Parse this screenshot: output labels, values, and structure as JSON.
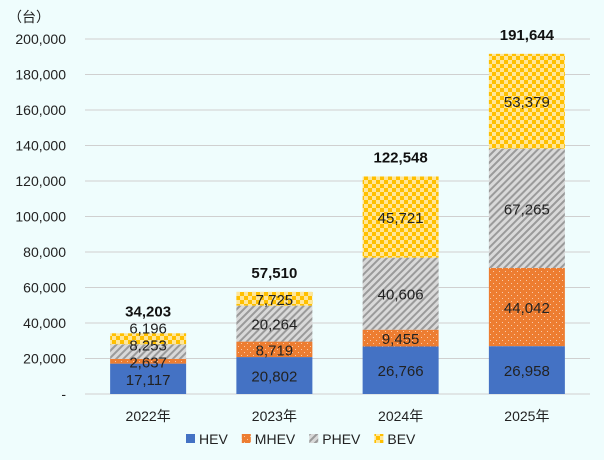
{
  "chart_data": {
    "type": "bar",
    "stacked": true,
    "unit_label": "（台）",
    "categories": [
      "2022年",
      "2023年",
      "2024年",
      "2025年"
    ],
    "series": [
      {
        "name": "HEV",
        "values": [
          17117,
          20802,
          26766,
          26958
        ],
        "color": "#4472c4"
      },
      {
        "name": "MHEV",
        "values": [
          2637,
          8719,
          9455,
          44042
        ],
        "color": "#ed7d31"
      },
      {
        "name": "PHEV",
        "values": [
          8253,
          20264,
          40606,
          67265
        ],
        "color": "#a5a5a5"
      },
      {
        "name": "BEV",
        "values": [
          6196,
          7725,
          45721,
          53379
        ],
        "color": "#ffc000"
      }
    ],
    "totals": [
      34203,
      57510,
      122548,
      191644
    ],
    "total_labels": [
      "34,203",
      "57,510",
      "122,548",
      "191,644"
    ],
    "ylim": [
      0,
      200000
    ],
    "yticks": [
      "-",
      "20,000",
      "40,000",
      "60,000",
      "80,000",
      "100,000",
      "120,000",
      "140,000",
      "160,000",
      "180,000",
      "200,000"
    ],
    "grid": true,
    "legend": "bottom"
  }
}
